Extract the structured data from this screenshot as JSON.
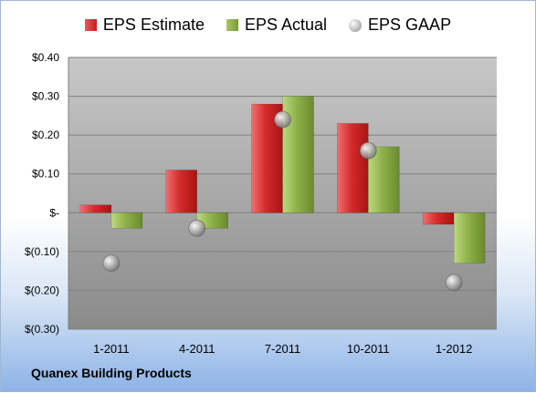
{
  "legend": {
    "estimate_label": "EPS Estimate",
    "actual_label": "EPS Actual",
    "gaap_label": "EPS GAAP"
  },
  "company": "Quanex Building Products",
  "colors": {
    "estimate": "#d42b2b",
    "actual": "#8fb24a",
    "gaap": "#9a9a9a",
    "plot_top": "#c8c8c8",
    "plot_bottom": "#8a8a8a"
  },
  "chart_data": {
    "type": "bar",
    "categories": [
      "1-2011",
      "4-2011",
      "7-2011",
      "10-2011",
      "1-2012"
    ],
    "series": [
      {
        "name": "EPS Estimate",
        "values": [
          0.02,
          0.11,
          0.28,
          0.23,
          -0.03
        ]
      },
      {
        "name": "EPS Actual",
        "values": [
          -0.04,
          -0.04,
          0.3,
          0.17,
          -0.13
        ]
      },
      {
        "name": "EPS GAAP",
        "values": [
          -0.13,
          -0.04,
          0.24,
          0.16,
          -0.18
        ],
        "marker": "circle"
      }
    ],
    "ylim": [
      -0.3,
      0.4
    ],
    "yticks": [
      {
        "value": 0.4,
        "label": "$0.40"
      },
      {
        "value": 0.3,
        "label": "$0.30"
      },
      {
        "value": 0.2,
        "label": "$0.20"
      },
      {
        "value": 0.1,
        "label": "$0.10"
      },
      {
        "value": 0.0,
        "label": "$-"
      },
      {
        "value": -0.1,
        "label": "$(0.10)"
      },
      {
        "value": -0.2,
        "label": "$(0.20)"
      },
      {
        "value": -0.3,
        "label": "$(0.30)"
      }
    ],
    "grid": true,
    "legend_position": "top"
  }
}
